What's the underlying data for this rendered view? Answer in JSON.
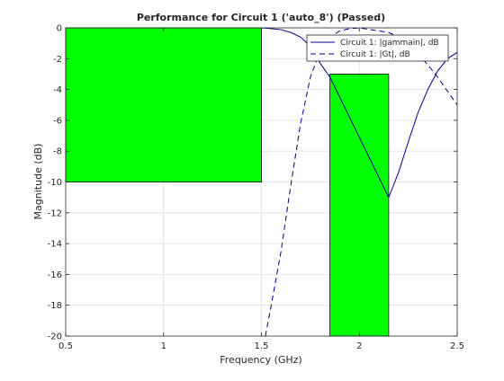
{
  "chart_data": {
    "type": "line",
    "title": "Performance for Circuit 1 ('auto_8')  (Passed)",
    "xlabel": "Frequency (GHz)",
    "ylabel": "Magnitude (dB)",
    "xlim": [
      0.5,
      2.5
    ],
    "ylim": [
      -20,
      0
    ],
    "x_ticks": [
      0.5,
      1,
      1.5,
      2,
      2.5
    ],
    "x_tick_labels": [
      "0.5",
      "1",
      "1.5",
      "2",
      "2.5"
    ],
    "y_ticks": [
      0,
      -2,
      -4,
      -6,
      -8,
      -10,
      -12,
      -14,
      -16,
      -18,
      -20
    ],
    "y_tick_labels": [
      "0",
      "-2",
      "-4",
      "-6",
      "-8",
      "-10",
      "-12",
      "-14",
      "-16",
      "-18",
      "-20"
    ],
    "grid": true,
    "legend_position": "top-right",
    "spec_regions": [
      {
        "x0": 0.5,
        "x1": 1.5,
        "y0": -10,
        "y1": 0,
        "color": "#00ff00"
      },
      {
        "x0": 1.85,
        "x1": 2.15,
        "y0": -20,
        "y1": -3,
        "color": "#00ff00"
      }
    ],
    "series": [
      {
        "name": "Circuit 1: |gammain|, dB",
        "style": "solid",
        "color": "#00008b",
        "x": [
          1.5,
          1.55,
          1.6,
          1.65,
          1.7,
          1.75,
          1.8,
          1.85,
          2.15,
          2.2,
          2.25,
          2.3,
          2.35,
          2.4,
          2.45,
          2.5
        ],
        "y": [
          0,
          -0.05,
          -0.12,
          -0.3,
          -0.6,
          -1.2,
          -2.3,
          -3.2,
          -11.0,
          -9.4,
          -7.4,
          -5.5,
          -4.0,
          -2.8,
          -2.0,
          -1.6
        ]
      },
      {
        "name": "Circuit 1: |Gt|, dB",
        "style": "dashed",
        "color": "#00008b",
        "x": [
          1.52,
          1.55,
          1.6,
          1.65,
          1.7,
          1.75,
          1.8,
          1.85,
          1.9,
          1.95,
          2.0,
          2.05,
          2.1,
          2.15,
          2.2,
          2.25,
          2.3,
          2.35,
          2.4,
          2.45,
          2.5
        ],
        "y": [
          -20,
          -18.0,
          -14.5,
          -10.2,
          -6.2,
          -3.2,
          -1.5,
          -0.6,
          -0.2,
          -0.05,
          0,
          -0.1,
          -0.2,
          -0.3,
          -0.6,
          -1.1,
          -1.7,
          -2.4,
          -3.2,
          -4.1,
          -5.0
        ]
      }
    ]
  }
}
